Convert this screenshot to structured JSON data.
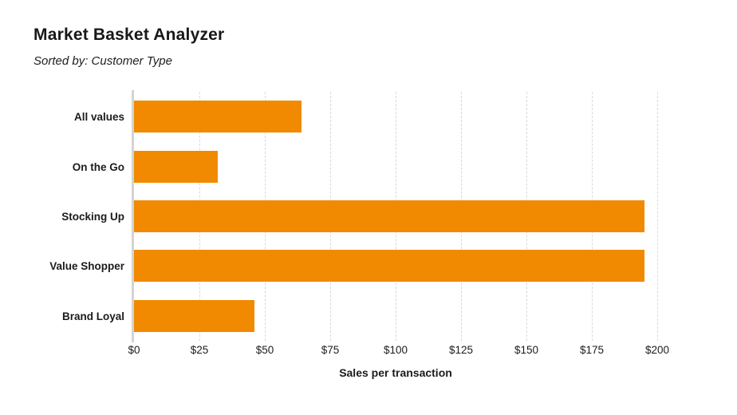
{
  "chart": {
    "title": "Market Basket Analyzer",
    "subtitle": "Sorted by: Customer Type",
    "xlabel": "Sales per transaction"
  },
  "chart_data": {
    "type": "bar",
    "orientation": "horizontal",
    "title": "Market Basket Analyzer",
    "subtitle": "Sorted by: Customer Type",
    "categories": [
      "All values",
      "On the Go",
      "Stocking Up",
      "Value Shopper",
      "Brand Loyal"
    ],
    "values": [
      64,
      32,
      195,
      195,
      46
    ],
    "xlabel": "Sales per transaction",
    "xlim": [
      0,
      200
    ],
    "tick_step": 25,
    "xtick_labels": [
      "$0",
      "$25",
      "$50",
      "$75",
      "$100",
      "$125",
      "$150",
      "$175",
      "$200"
    ],
    "grid": "vertical-dashed",
    "legend": "none",
    "bar_color": "#F18A00",
    "axis_line_color": "#d4d4d4",
    "gridline_color": "#d9d9d9",
    "text_color": "#1b1b1b"
  }
}
